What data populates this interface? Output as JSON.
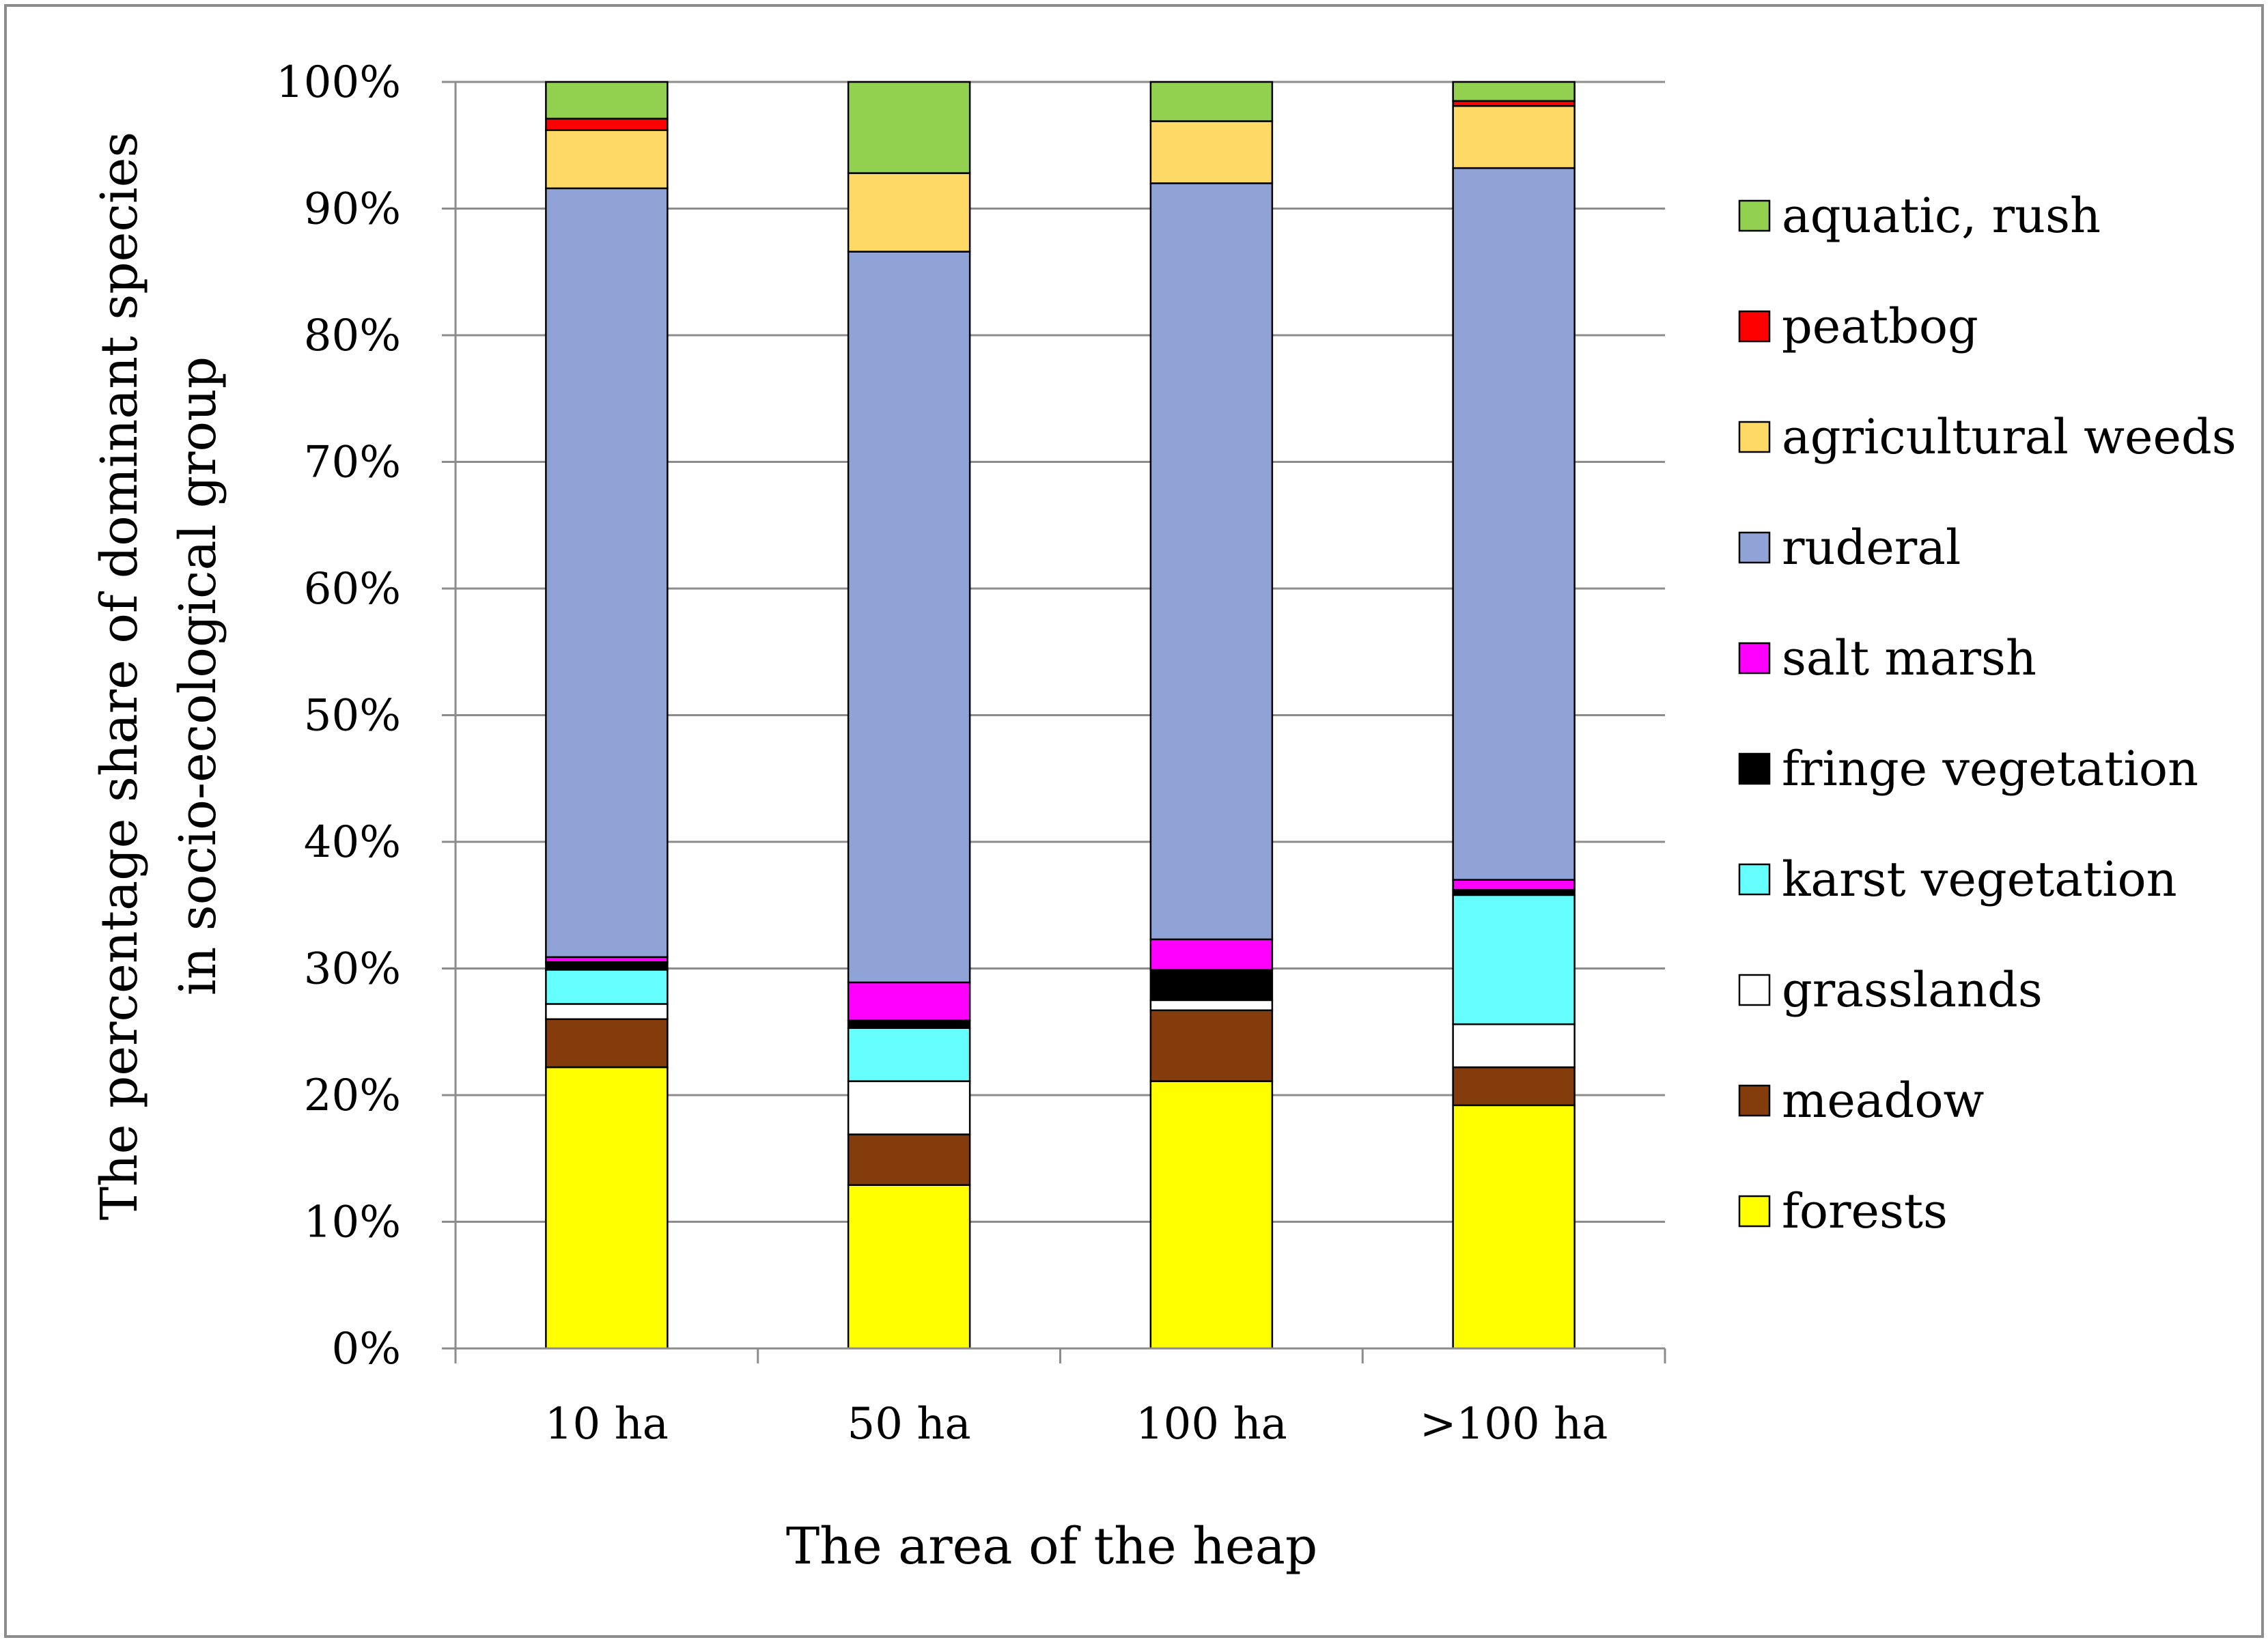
{
  "chart_data": {
    "type": "bar",
    "stacked": true,
    "percent": true,
    "title": "",
    "xlabel": "The area of the heap",
    "ylabel_lines": [
      "The percentage share of dominant species",
      "in socio-ecological group"
    ],
    "ylim": [
      0,
      100
    ],
    "yticks": [
      "0%",
      "10%",
      "20%",
      "30%",
      "40%",
      "50%",
      "60%",
      "70%",
      "80%",
      "90%",
      "100%"
    ],
    "categories": [
      "10 ha",
      "50 ha",
      "100 ha",
      ">100 ha"
    ],
    "legend_position": "right",
    "series": [
      {
        "name": "forests",
        "color": "#ffff00",
        "values": [
          22.2,
          12.9,
          21.1,
          19.2
        ]
      },
      {
        "name": "meadow",
        "color": "#843c0c",
        "values": [
          3.8,
          4.0,
          5.6,
          3.0
        ]
      },
      {
        "name": "grasslands",
        "color": "#ffffff",
        "values": [
          1.2,
          4.2,
          0.8,
          3.4
        ]
      },
      {
        "name": "karst vegetation",
        "color": "#66ffff",
        "values": [
          2.7,
          4.2,
          0.0,
          10.2
        ]
      },
      {
        "name": "fringe vegetation",
        "color": "#000000",
        "values": [
          0.6,
          0.6,
          2.4,
          0.4
        ]
      },
      {
        "name": "salt marsh",
        "color": "#ff00ff",
        "values": [
          0.4,
          3.0,
          2.4,
          0.8
        ]
      },
      {
        "name": "ruderal",
        "color": "#8fa3d6",
        "values": [
          60.7,
          57.7,
          59.7,
          56.2
        ]
      },
      {
        "name": "agricultural weeds",
        "color": "#ffd966",
        "values": [
          4.6,
          6.2,
          4.9,
          4.9
        ]
      },
      {
        "name": "peatbog",
        "color": "#ff0000",
        "values": [
          0.9,
          0.0,
          0.0,
          0.4
        ]
      },
      {
        "name": "aquatic, rush",
        "color": "#92d050",
        "values": [
          2.9,
          7.2,
          3.1,
          1.5
        ]
      }
    ]
  }
}
